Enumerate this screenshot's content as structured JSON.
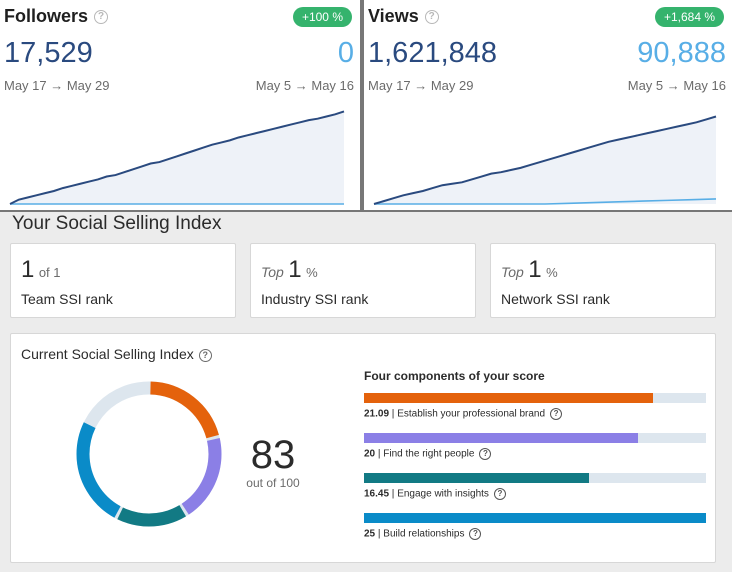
{
  "followers": {
    "label": "Followers",
    "help_glyph": "?",
    "change_badge": "+100 %",
    "current_value": "17,529",
    "previous_value": "0",
    "current_range": "May 17 → May 29",
    "previous_range": "May 5 → May 16",
    "series_current": [
      0,
      6,
      9,
      12,
      15,
      18,
      22,
      25,
      28,
      31,
      34,
      38,
      40,
      44,
      48,
      52,
      56,
      58,
      62,
      66,
      70,
      74,
      78,
      82,
      85,
      88,
      92,
      95,
      98,
      101,
      104,
      107,
      110,
      113,
      116,
      118,
      121,
      124,
      128
    ],
    "series_previous": [
      0,
      0,
      0,
      0,
      0,
      0,
      0,
      0,
      0,
      0
    ]
  },
  "views": {
    "label": "Views",
    "help_glyph": "?",
    "change_badge": "+1,684 %",
    "current_value": "1,621,848",
    "previous_value": "90,888",
    "current_range": "May 17 → May 29",
    "previous_range": "May 5 → May 16",
    "series_current": [
      0,
      4,
      8,
      12,
      15,
      18,
      22,
      26,
      28,
      30,
      34,
      38,
      42,
      44,
      47,
      50,
      54,
      58,
      62,
      66,
      70,
      74,
      78,
      82,
      86,
      89,
      92,
      95,
      98,
      101,
      104,
      107,
      110,
      113,
      117,
      121
    ],
    "series_previous": [
      0,
      0,
      0,
      0,
      0,
      0,
      0,
      0,
      1,
      2,
      3,
      4,
      5,
      6,
      7
    ]
  },
  "ssi": {
    "title": "Your Social Selling Index",
    "ranks": [
      {
        "prefix": "",
        "value": "1",
        "suffix": "of 1",
        "label": "Team SSI rank"
      },
      {
        "prefix": "Top",
        "value": "1",
        "suffix": "%",
        "label": "Industry SSI rank"
      },
      {
        "prefix": "Top",
        "value": "1",
        "suffix": "%",
        "label": "Network SSI rank"
      }
    ],
    "current_title": "Current Social Selling Index",
    "help_glyph": "?",
    "score": "83",
    "score_sub": "out of 100",
    "components_title": "Four components of your score",
    "components": [
      {
        "value": "21.09",
        "label": "Establish your professional brand",
        "fraction": 0.8436,
        "color": "#e4620c"
      },
      {
        "value": "20",
        "label": "Find the right people",
        "fraction": 0.8,
        "color": "#8b7fe6"
      },
      {
        "value": "16.45",
        "label": "Engage with insights",
        "fraction": 0.658,
        "color": "#127a84"
      },
      {
        "value": "25",
        "label": "Build relationships",
        "fraction": 1.0,
        "color": "#0a8bc8"
      }
    ],
    "donut_remainder_color": "#dde6ee"
  }
}
